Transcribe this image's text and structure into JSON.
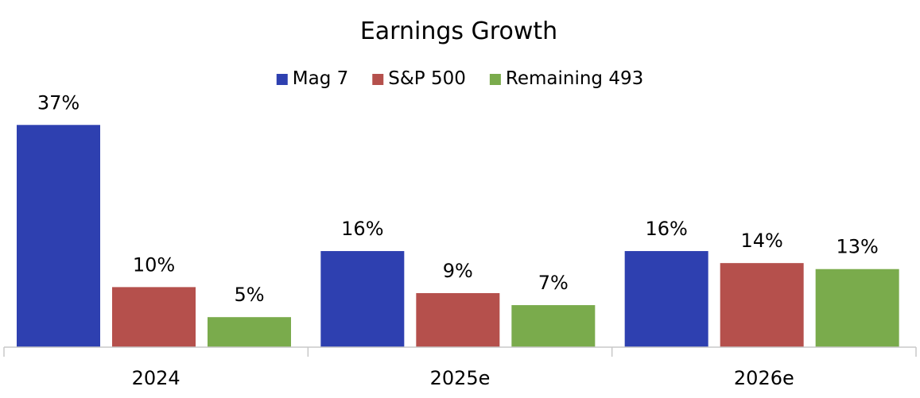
{
  "chart_data": {
    "type": "bar",
    "title": "Earnings Growth",
    "xlabel": "",
    "ylabel": "",
    "categories": [
      "2024",
      "2025e",
      "2026e"
    ],
    "series": [
      {
        "name": "Mag 7",
        "color": "#2e40b0",
        "values": [
          37,
          16,
          16
        ]
      },
      {
        "name": "S&P 500",
        "color": "#b5504c",
        "values": [
          10,
          9,
          14
        ]
      },
      {
        "name": "Remaining 493",
        "color": "#7aab4c",
        "values": [
          5,
          7,
          13
        ]
      }
    ],
    "value_suffix": "%",
    "ylim": [
      0,
      40
    ],
    "grid": false,
    "legend_position": "top-center",
    "data_labels": true
  }
}
